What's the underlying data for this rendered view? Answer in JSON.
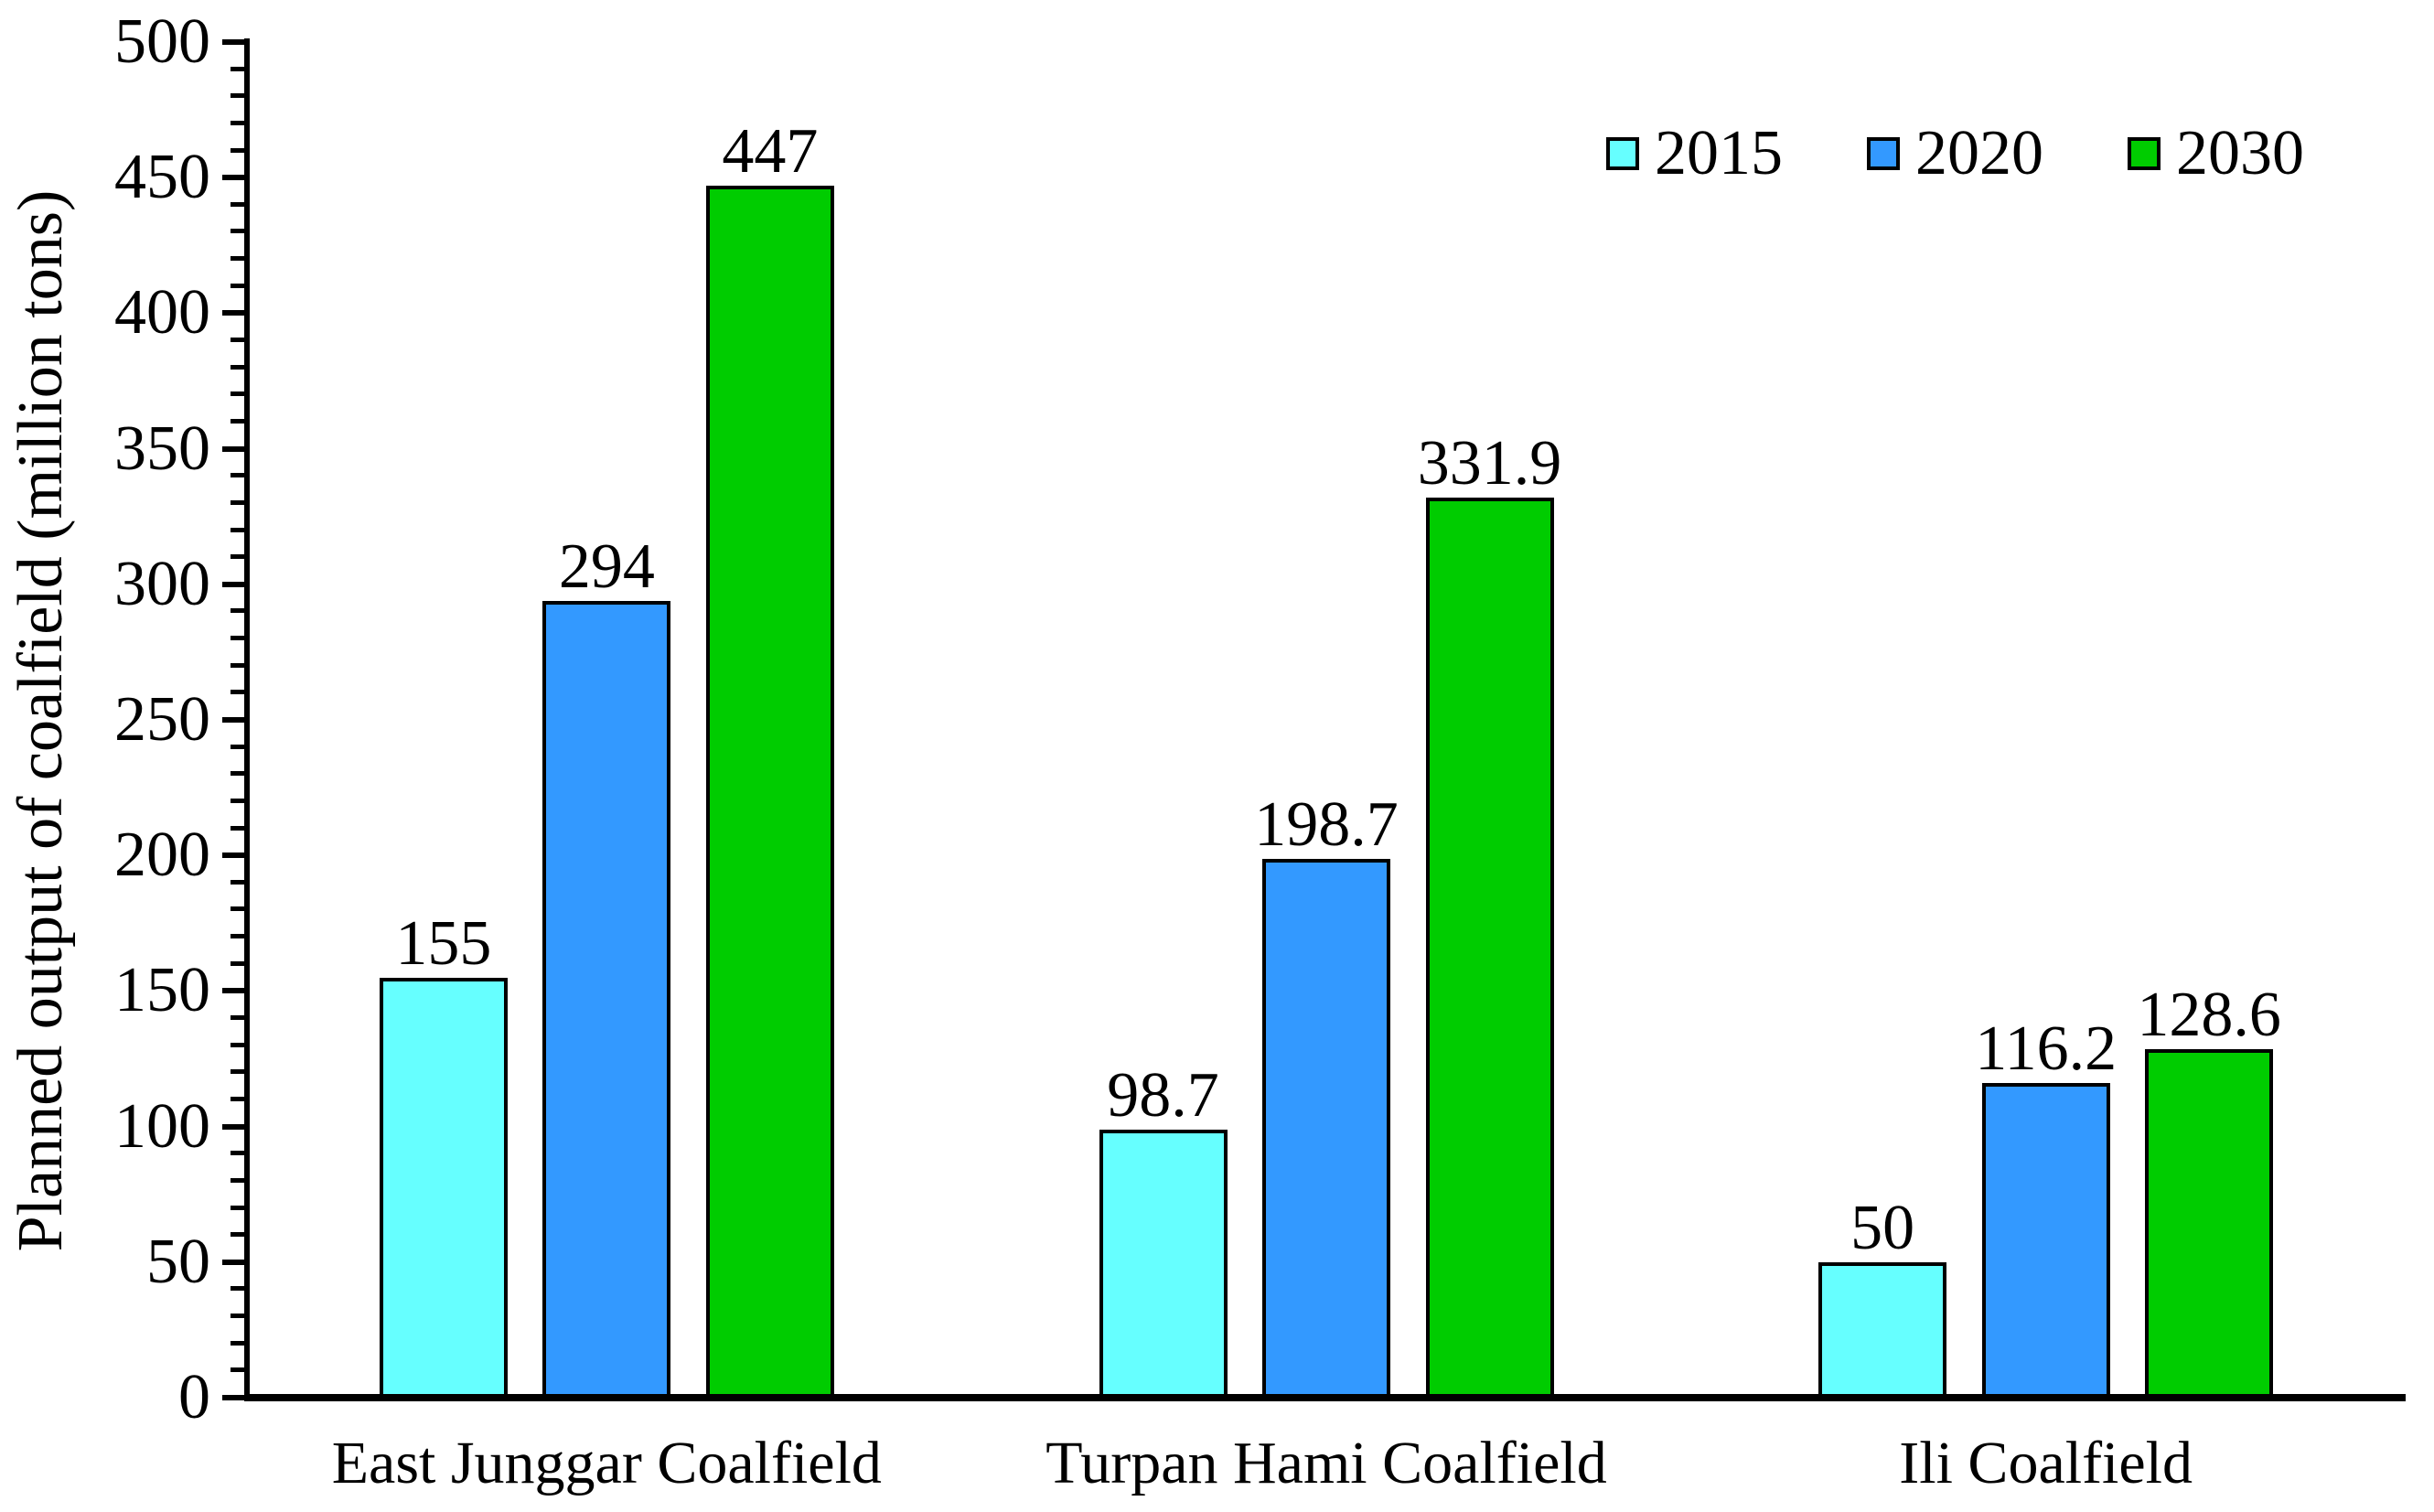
{
  "chart_data": {
    "type": "bar",
    "title": "",
    "xlabel": "",
    "ylabel": "Planned output of coalfield (million tons)",
    "ylim": [
      0,
      500
    ],
    "y_major_step": 50,
    "y_minor_step": 10,
    "grid": false,
    "legend_position": "top-right",
    "axis_color": "#000000",
    "bar_edge_color": "#000000",
    "categories": [
      "East Junggar Coalfield",
      "Turpan Hami Coalfield",
      "Ili Coalfield"
    ],
    "series": [
      {
        "name": "2015",
        "color": "#66FFFF",
        "values": [
          155,
          98.7,
          50
        ],
        "labels": [
          "155",
          "98.7",
          "50"
        ]
      },
      {
        "name": "2020",
        "color": "#3399FF",
        "values": [
          294,
          198.7,
          116.2
        ],
        "labels": [
          "294",
          "198.7",
          "116.2"
        ]
      },
      {
        "name": "2030",
        "color": "#00CC00",
        "values": [
          447,
          331.9,
          128.6
        ],
        "labels": [
          "447",
          "331.9",
          "128.6"
        ]
      }
    ]
  }
}
